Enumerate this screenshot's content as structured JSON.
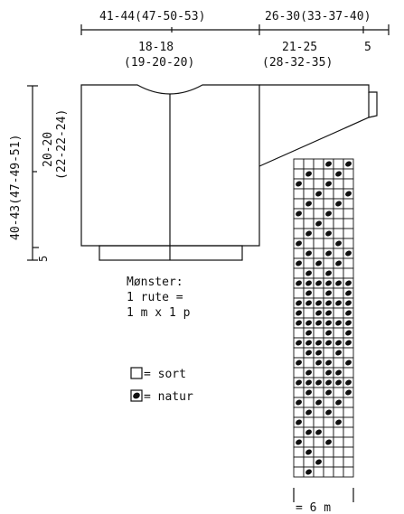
{
  "dimensions": {
    "top_total": "41-44(47-50-53)",
    "top_sleeve": "26-30(33-37-40)",
    "body_half": "18-18",
    "body_half_sizes": "(19-20-20)",
    "sleeve_width": "21-25",
    "sleeve_width_sizes": "(28-32-35)",
    "sleeve_cuff": "5",
    "total_length": "40-43(47-49-51)",
    "armhole_depth": "20-20",
    "armhole_depth_sizes": "(22-22-24)",
    "rib_height": "5"
  },
  "legend": {
    "pattern_title": "Mønster:",
    "pattern_line1": "1 rute =",
    "pattern_line2": "1 m x 1 p",
    "sort_label": "= sort",
    "natur_label": "= natur"
  },
  "chart": {
    "columns": 6,
    "rows": 32,
    "width_label": "= 6 m",
    "filled": [
      [
        0,
        3
      ],
      [
        0,
        5
      ],
      [
        1,
        1
      ],
      [
        1,
        4
      ],
      [
        2,
        0
      ],
      [
        2,
        3
      ],
      [
        3,
        2
      ],
      [
        3,
        5
      ],
      [
        4,
        1
      ],
      [
        4,
        4
      ],
      [
        5,
        0
      ],
      [
        5,
        3
      ],
      [
        6,
        2
      ],
      [
        7,
        1
      ],
      [
        7,
        3
      ],
      [
        8,
        0
      ],
      [
        8,
        4
      ],
      [
        9,
        1
      ],
      [
        9,
        3
      ],
      [
        9,
        5
      ],
      [
        10,
        0
      ],
      [
        10,
        2
      ],
      [
        10,
        4
      ],
      [
        11,
        1
      ],
      [
        11,
        3
      ],
      [
        12,
        0
      ],
      [
        12,
        1
      ],
      [
        12,
        2
      ],
      [
        12,
        3
      ],
      [
        12,
        4
      ],
      [
        12,
        5
      ],
      [
        13,
        1
      ],
      [
        13,
        3
      ],
      [
        13,
        5
      ],
      [
        14,
        0
      ],
      [
        14,
        1
      ],
      [
        14,
        2
      ],
      [
        14,
        3
      ],
      [
        14,
        4
      ],
      [
        14,
        5
      ],
      [
        15,
        0
      ],
      [
        15,
        2
      ],
      [
        15,
        3
      ],
      [
        15,
        5
      ],
      [
        16,
        0
      ],
      [
        16,
        1
      ],
      [
        16,
        2
      ],
      [
        16,
        3
      ],
      [
        16,
        4
      ],
      [
        16,
        5
      ],
      [
        17,
        1
      ],
      [
        17,
        3
      ],
      [
        17,
        5
      ],
      [
        18,
        0
      ],
      [
        18,
        1
      ],
      [
        18,
        2
      ],
      [
        18,
        3
      ],
      [
        18,
        4
      ],
      [
        18,
        5
      ],
      [
        19,
        1
      ],
      [
        19,
        2
      ],
      [
        19,
        4
      ],
      [
        20,
        0
      ],
      [
        20,
        2
      ],
      [
        20,
        3
      ],
      [
        20,
        5
      ],
      [
        21,
        1
      ],
      [
        21,
        3
      ],
      [
        21,
        4
      ],
      [
        22,
        0
      ],
      [
        22,
        1
      ],
      [
        22,
        2
      ],
      [
        22,
        3
      ],
      [
        22,
        4
      ],
      [
        22,
        5
      ],
      [
        23,
        1
      ],
      [
        23,
        3
      ],
      [
        23,
        5
      ],
      [
        24,
        0
      ],
      [
        24,
        2
      ],
      [
        24,
        4
      ],
      [
        25,
        1
      ],
      [
        25,
        3
      ],
      [
        26,
        0
      ],
      [
        26,
        4
      ],
      [
        27,
        1
      ],
      [
        27,
        2
      ],
      [
        28,
        0
      ],
      [
        28,
        3
      ],
      [
        29,
        1
      ],
      [
        30,
        2
      ],
      [
        31,
        1
      ]
    ]
  }
}
